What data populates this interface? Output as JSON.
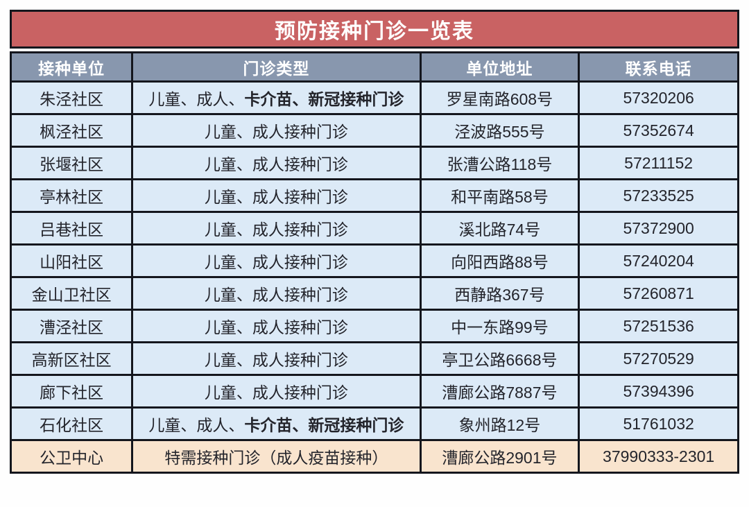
{
  "table": {
    "title": "预防接种门诊一览表",
    "columns": [
      "接种单位",
      "门诊类型",
      "单位地址",
      "联系电话"
    ],
    "rows": [
      {
        "unit": "朱泾社区",
        "type_regular": "儿童、成人、",
        "type_bold": "卡介苗、新冠接种门诊",
        "address": "罗星南路608号",
        "phone": "57320206",
        "highlight": false
      },
      {
        "unit": "枫泾社区",
        "type_regular": "儿童、成人接种门诊",
        "type_bold": "",
        "address": "泾波路555号",
        "phone": "57352674",
        "highlight": false
      },
      {
        "unit": "张堰社区",
        "type_regular": "儿童、成人接种门诊",
        "type_bold": "",
        "address": "张漕公路118号",
        "phone": "57211152",
        "highlight": false
      },
      {
        "unit": "亭林社区",
        "type_regular": "儿童、成人接种门诊",
        "type_bold": "",
        "address": "和平南路58号",
        "phone": "57233525",
        "highlight": false
      },
      {
        "unit": "吕巷社区",
        "type_regular": "儿童、成人接种门诊",
        "type_bold": "",
        "address": "溪北路74号",
        "phone": "57372900",
        "highlight": false
      },
      {
        "unit": "山阳社区",
        "type_regular": "儿童、成人接种门诊",
        "type_bold": "",
        "address": "向阳西路88号",
        "phone": "57240204",
        "highlight": false
      },
      {
        "unit": "金山卫社区",
        "type_regular": "儿童、成人接种门诊",
        "type_bold": "",
        "address": "西静路367号",
        "phone": "57260871",
        "highlight": false
      },
      {
        "unit": "漕泾社区",
        "type_regular": "儿童、成人接种门诊",
        "type_bold": "",
        "address": "中一东路99号",
        "phone": "57251536",
        "highlight": false
      },
      {
        "unit": "高新区社区",
        "type_regular": "儿童、成人接种门诊",
        "type_bold": "",
        "address": "亭卫公路6668号",
        "phone": "57270529",
        "highlight": false
      },
      {
        "unit": "廊下社区",
        "type_regular": "儿童、成人接种门诊",
        "type_bold": "",
        "address": "漕廊公路7887号",
        "phone": "57394396",
        "highlight": false
      },
      {
        "unit": "石化社区",
        "type_regular": "儿童、成人、",
        "type_bold": "卡介苗、新冠接种门诊",
        "address": "象州路12号",
        "phone": "51761032",
        "highlight": false
      },
      {
        "unit": "公卫中心",
        "type_regular": "特需接种门诊（成人疫苗接种）",
        "type_bold": "",
        "address": "漕廊公路2901号",
        "phone": "37990333-2301",
        "highlight": true
      }
    ],
    "colors": {
      "title_bg": "#c96263",
      "header_bg": "#8897ae",
      "row_bg": "#dceaf7",
      "highlight_row_bg": "#f9e4ce",
      "border": "#14161d",
      "title_text": "#ffffff",
      "header_text": "#ffffff",
      "cell_text": "#23242b"
    }
  }
}
